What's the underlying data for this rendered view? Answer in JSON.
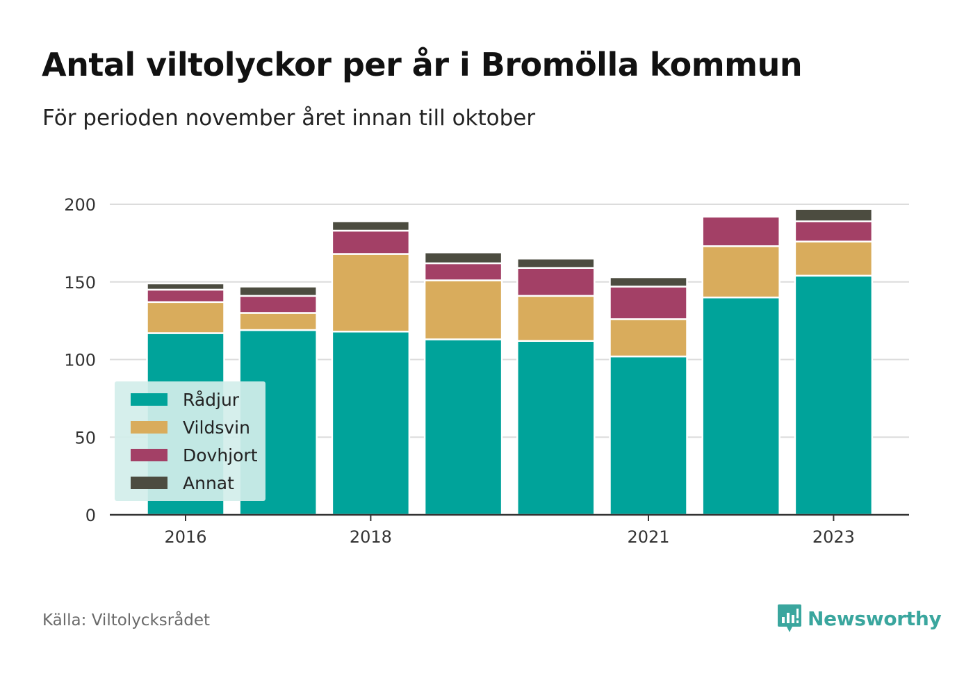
{
  "title": "Antal viltolyckor per år i Bromölla kommun",
  "subtitle": "För perioden november året innan till oktober",
  "source": "Källa: Viltolycksrådet",
  "brand": "Newsworthy",
  "colors": {
    "Rådjur": "#00a39a",
    "Vildsvin": "#d9ac5c",
    "Dovhjort": "#a34066",
    "Annat": "#4c4c40"
  },
  "chart_data": {
    "type": "bar",
    "stacked": true,
    "title": "Antal viltolyckor per år i Bromölla kommun",
    "subtitle": "För perioden november året innan till oktober",
    "xlabel": "",
    "ylabel": "",
    "categories": [
      "2016",
      "2017",
      "2018",
      "2019",
      "2020",
      "2021",
      "2022",
      "2023"
    ],
    "x_tick_labels": [
      "2016",
      "",
      "2018",
      "",
      "",
      "2021",
      "",
      "2023"
    ],
    "y_ticks": [
      0,
      50,
      100,
      150,
      200
    ],
    "ylim": [
      0,
      200
    ],
    "grid": true,
    "legend_position": "bottom-left",
    "series": [
      {
        "name": "Rådjur",
        "values": [
          117,
          119,
          118,
          113,
          112,
          102,
          140,
          154
        ]
      },
      {
        "name": "Vildsvin",
        "values": [
          20,
          11,
          50,
          38,
          29,
          24,
          33,
          22
        ]
      },
      {
        "name": "Dovhjort",
        "values": [
          8,
          11,
          15,
          11,
          18,
          21,
          19,
          13
        ]
      },
      {
        "name": "Annat",
        "values": [
          4,
          6,
          6,
          7,
          6,
          6,
          0,
          8
        ]
      }
    ]
  }
}
